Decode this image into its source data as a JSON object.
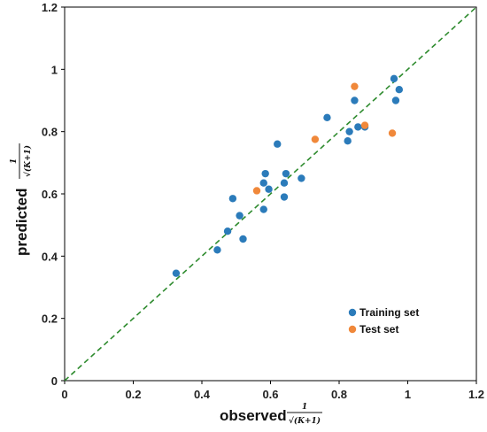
{
  "chart_data": {
    "type": "scatter",
    "xlabel": "observed",
    "ylabel": "predicted",
    "axis_fraction": {
      "numerator": "1",
      "denominator": "√(K+1)"
    },
    "xlim": [
      0,
      1.2
    ],
    "ylim": [
      0,
      1.2
    ],
    "xticks": [
      "0",
      "0.2",
      "0.4",
      "0.6",
      "0.8",
      "1",
      "1.2"
    ],
    "yticks": [
      "0",
      "0.2",
      "0.4",
      "0.6",
      "0.8",
      "1",
      "1.2"
    ],
    "reference_line": {
      "style": "dashed",
      "color": "#2e8b2e",
      "from": [
        0,
        0
      ],
      "to": [
        1.2,
        1.2
      ]
    },
    "legend_position": "bottom-right",
    "series": [
      {
        "name": "Training set",
        "color": "#2b7bba",
        "points": [
          [
            0.325,
            0.345
          ],
          [
            0.445,
            0.42
          ],
          [
            0.475,
            0.48
          ],
          [
            0.49,
            0.585
          ],
          [
            0.51,
            0.53
          ],
          [
            0.52,
            0.455
          ],
          [
            0.58,
            0.55
          ],
          [
            0.58,
            0.635
          ],
          [
            0.585,
            0.665
          ],
          [
            0.595,
            0.615
          ],
          [
            0.62,
            0.76
          ],
          [
            0.64,
            0.59
          ],
          [
            0.64,
            0.635
          ],
          [
            0.645,
            0.665
          ],
          [
            0.69,
            0.65
          ],
          [
            0.765,
            0.845
          ],
          [
            0.825,
            0.77
          ],
          [
            0.83,
            0.8
          ],
          [
            0.845,
            0.9
          ],
          [
            0.855,
            0.815
          ],
          [
            0.875,
            0.815
          ],
          [
            0.96,
            0.97
          ],
          [
            0.965,
            0.9
          ],
          [
            0.975,
            0.935
          ]
        ]
      },
      {
        "name": "Test set",
        "color": "#f0883a",
        "points": [
          [
            0.56,
            0.61
          ],
          [
            0.73,
            0.775
          ],
          [
            0.845,
            0.945
          ],
          [
            0.875,
            0.82
          ],
          [
            0.955,
            0.795
          ]
        ]
      }
    ]
  }
}
